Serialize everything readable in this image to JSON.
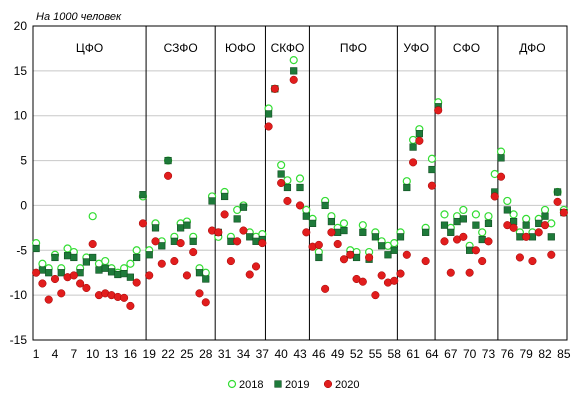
{
  "chart_data": {
    "type": "scatter",
    "y_unit_label": "На 1000 человек",
    "ylim": [
      -15,
      20
    ],
    "yticks": [
      -15,
      -10,
      -5,
      0,
      5,
      10,
      15,
      20
    ],
    "xlim": [
      0.5,
      85.5
    ],
    "xticks": [
      1,
      4,
      7,
      10,
      13,
      16,
      19,
      22,
      25,
      28,
      31,
      34,
      37,
      40,
      43,
      46,
      49,
      52,
      55,
      58,
      61,
      64,
      67,
      70,
      73,
      76,
      79,
      82,
      85
    ],
    "grid": "horizontal",
    "legend_position": "bottom",
    "groups": [
      {
        "name": "ЦФО",
        "from": 1,
        "to": 18
      },
      {
        "name": "СЗФО",
        "from": 19,
        "to": 29
      },
      {
        "name": "ЮФО",
        "from": 30,
        "to": 37
      },
      {
        "name": "СКФО",
        "from": 38,
        "to": 44
      },
      {
        "name": "ПФО",
        "from": 45,
        "to": 58
      },
      {
        "name": "УФО",
        "from": 59,
        "to": 64
      },
      {
        "name": "СФО",
        "from": 65,
        "to": 74
      },
      {
        "name": "ДФО",
        "from": 75,
        "to": 85
      }
    ],
    "series": [
      {
        "name": "2018",
        "color": "#33dd33",
        "values": [
          -4.2,
          -6.5,
          -7.0,
          -5.5,
          -7.0,
          -4.8,
          -5.2,
          -7.0,
          -5.8,
          -1.2,
          -6.5,
          -6.2,
          -7.0,
          -7.5,
          -7.0,
          -6.5,
          -5.0,
          1.0,
          -5.0,
          -2.0,
          -4.0,
          5.0,
          -3.5,
          -2.0,
          -1.8,
          -3.5,
          -7.0,
          -7.5,
          1.0,
          -3.5,
          1.5,
          -3.5,
          -0.5,
          0.0,
          -3.0,
          -3.5,
          -3.2,
          10.8,
          13.0,
          4.5,
          2.8,
          16.2,
          3.0,
          -0.5,
          -1.5,
          -5.2,
          0.5,
          -1.2,
          -2.5,
          -2.0,
          -5.0,
          -5.2,
          -2.2,
          -5.2,
          -3.0,
          -4.0,
          -4.5,
          -4.2,
          -3.0,
          2.7,
          7.3,
          8.5,
          -2.5,
          5.2,
          11.5,
          -1.0,
          -2.5,
          -1.2,
          -0.5,
          -4.5,
          -1.0,
          -3.0,
          -1.2,
          3.5,
          6.0,
          0.5,
          -1.0,
          -3.0,
          -1.5,
          -3.0,
          -1.5,
          -0.5,
          -2.0,
          1.5,
          -0.5
        ]
      },
      {
        "name": "2019",
        "color": "#1e7a3a",
        "values": [
          -4.8,
          -7.2,
          -7.5,
          -5.8,
          -7.5,
          -5.6,
          -5.8,
          -7.5,
          -6.3,
          -5.8,
          -7.2,
          -7.0,
          -7.4,
          -7.7,
          -7.6,
          -8.0,
          -5.8,
          1.2,
          -5.5,
          -2.5,
          -4.5,
          5.0,
          -4.0,
          -2.5,
          -2.2,
          -4.0,
          -7.5,
          -8.2,
          0.5,
          -3.0,
          1.0,
          -4.0,
          -1.5,
          -0.2,
          -3.5,
          -4.0,
          -3.8,
          10.2,
          13.0,
          3.5,
          2.0,
          15.0,
          2.0,
          -1.2,
          -2.0,
          -5.8,
          0.0,
          -1.8,
          -3.0,
          -2.8,
          -5.5,
          -5.8,
          -3.0,
          -6.0,
          -3.5,
          -4.5,
          -5.5,
          -5.0,
          -3.5,
          2.0,
          6.5,
          8.0,
          -3.0,
          4.0,
          11.0,
          -2.2,
          -3.0,
          -1.8,
          -1.5,
          -5.0,
          -2.2,
          -3.8,
          -2.0,
          1.5,
          5.3,
          -0.5,
          -1.8,
          -3.5,
          -2.2,
          -3.5,
          -2.0,
          -1.2,
          -3.5,
          1.5,
          -0.8
        ]
      },
      {
        "name": "2020",
        "color": "#e11d1d",
        "values": [
          -7.5,
          -8.7,
          -10.5,
          -8.2,
          -9.8,
          -8.0,
          -7.8,
          -8.7,
          -9.2,
          -4.3,
          -10.0,
          -9.8,
          -10.0,
          -10.2,
          -10.3,
          -11.2,
          -8.6,
          -2.0,
          -7.8,
          -4.0,
          -6.5,
          3.3,
          -6.2,
          -4.2,
          -7.8,
          -5.2,
          -9.8,
          -10.8,
          -2.8,
          -3.0,
          -1.0,
          -6.2,
          -4.0,
          -2.8,
          -7.7,
          -6.8,
          -4.2,
          8.8,
          13.0,
          2.5,
          0.5,
          14.0,
          0.0,
          -3.0,
          -4.6,
          -4.4,
          -9.3,
          -3.0,
          -4.3,
          -6.0,
          -5.5,
          -8.2,
          -8.5,
          -5.8,
          -10.0,
          -7.8,
          -8.6,
          -8.4,
          -7.6,
          -5.5,
          4.8,
          7.2,
          -6.2,
          2.2,
          10.6,
          -4.0,
          -7.5,
          -3.8,
          -3.5,
          -7.5,
          -5.0,
          -6.2,
          -4.0,
          1.0,
          3.2,
          -2.2,
          -2.5,
          -5.8,
          -3.5,
          -6.2,
          -3.0,
          -2.2,
          -5.5,
          0.4,
          -0.8
        ]
      }
    ]
  }
}
